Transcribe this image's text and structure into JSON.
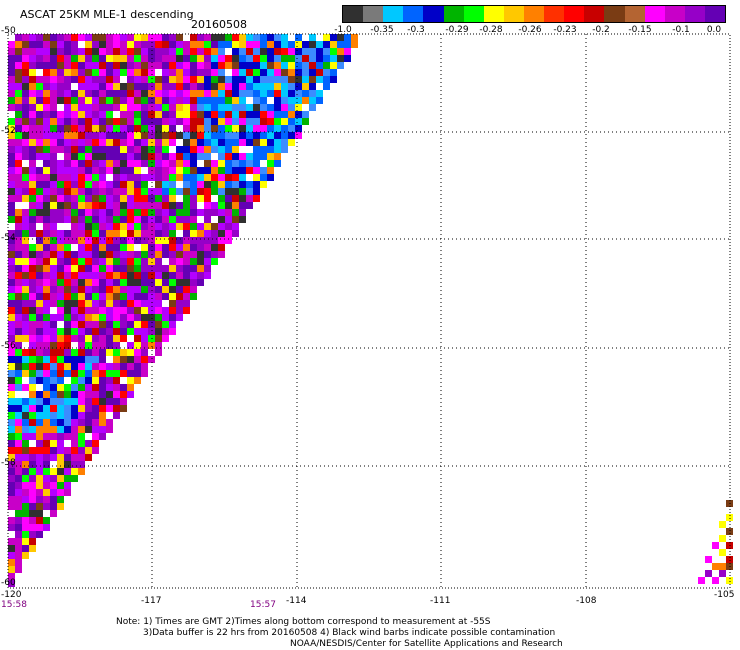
{
  "header": {
    "title": "ASCAT 25KM MLE-1 descending",
    "date": "20160508"
  },
  "colorbar": {
    "labels": [
      "-1.0",
      "-0.35",
      "-0.3",
      "-0.29",
      "-0.28",
      "-0.26",
      "-0.23",
      "-0.2",
      "-0.15",
      "-0.1",
      "0.0"
    ],
    "colors": [
      "#303030",
      "#7a7a7a",
      "#00c8ff",
      "#0064ff",
      "#0000c8",
      "#00b400",
      "#00ff00",
      "#ffff00",
      "#ffc800",
      "#ff8000",
      "#ff3000",
      "#ff0000",
      "#c80000",
      "#7a3c14",
      "#b46432",
      "#ff00ff",
      "#c800c8",
      "#9600c8",
      "#6400b4"
    ]
  },
  "y_axis": {
    "ticks": [
      "-50",
      "-52",
      "-54",
      "-56",
      "-58",
      "-60"
    ]
  },
  "x_axis": {
    "ticks": [
      "-120",
      "-117",
      "-114",
      "-111",
      "-108",
      "-105"
    ]
  },
  "times": [
    "15:58",
    "15:57"
  ],
  "notes": {
    "line1": "Note: 1) Times are GMT 2)Times along bottom correspond to measurement at -55S",
    "line2": "3)Data buffer is 22 hrs from 20160508 4) Black wind barbs indicate possible contamination",
    "line3": "NOAA/NESDIS/Center for Satellite Applications and Research"
  },
  "legend_meaning": {
    "dark_purple": "near 0.0",
    "blue": "around -0.3"
  }
}
